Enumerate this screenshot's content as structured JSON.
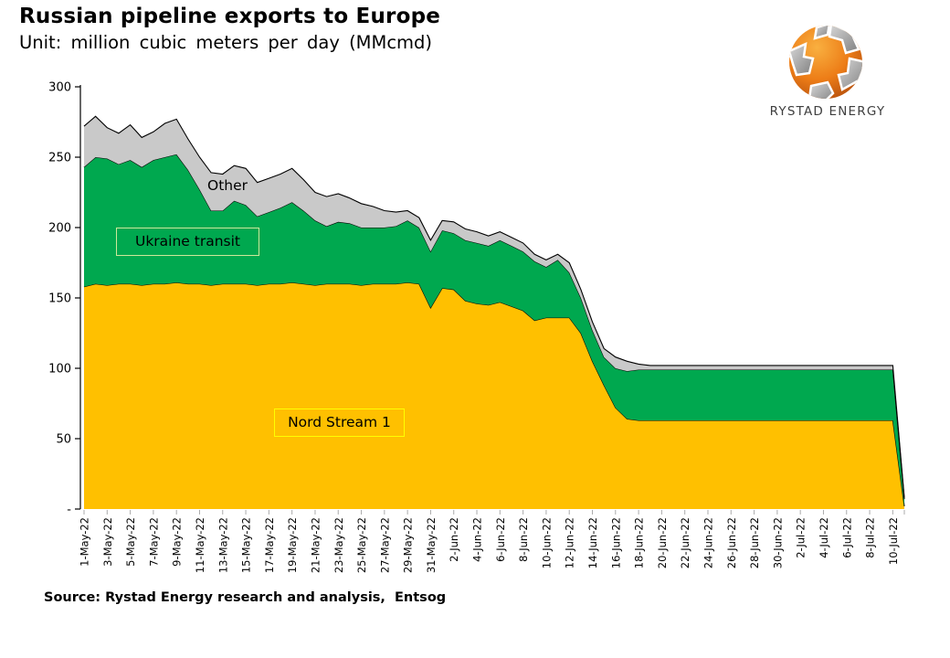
{
  "header": {
    "title": "Russian pipeline exports to Europe",
    "subtitle": "Unit: million cubic meters per day (MMcmd)"
  },
  "logo": {
    "text": "RYSTAD ENERGY"
  },
  "source": {
    "text": "Source: Rystad Energy research and analysis,  Entsog"
  },
  "chart_data": {
    "type": "area",
    "stacked": true,
    "title": "Russian pipeline exports to Europe",
    "ylabel": "MMcmd",
    "ylim": [
      0,
      300
    ],
    "grid": false,
    "legend_position": "inline-labels",
    "ytick_values": [
      0,
      50,
      100,
      150,
      200,
      250,
      300
    ],
    "ytick_labels": [
      "-",
      "50",
      "100",
      "150",
      "200",
      "250",
      "300"
    ],
    "x": [
      "1-May-22",
      "2-May-22",
      "3-May-22",
      "4-May-22",
      "5-May-22",
      "6-May-22",
      "7-May-22",
      "8-May-22",
      "9-May-22",
      "10-May-22",
      "11-May-22",
      "12-May-22",
      "13-May-22",
      "14-May-22",
      "15-May-22",
      "16-May-22",
      "17-May-22",
      "18-May-22",
      "19-May-22",
      "20-May-22",
      "21-May-22",
      "22-May-22",
      "23-May-22",
      "24-May-22",
      "25-May-22",
      "26-May-22",
      "27-May-22",
      "28-May-22",
      "29-May-22",
      "30-May-22",
      "31-May-22",
      "1-Jun-22",
      "2-Jun-22",
      "3-Jun-22",
      "4-Jun-22",
      "5-Jun-22",
      "6-Jun-22",
      "7-Jun-22",
      "8-Jun-22",
      "9-Jun-22",
      "10-Jun-22",
      "11-Jun-22",
      "12-Jun-22",
      "13-Jun-22",
      "14-Jun-22",
      "15-Jun-22",
      "16-Jun-22",
      "17-Jun-22",
      "18-Jun-22",
      "19-Jun-22",
      "20-Jun-22",
      "21-Jun-22",
      "22-Jun-22",
      "23-Jun-22",
      "24-Jun-22",
      "25-Jun-22",
      "26-Jun-22",
      "27-Jun-22",
      "28-Jun-22",
      "29-Jun-22",
      "30-Jun-22",
      "1-Jul-22",
      "2-Jul-22",
      "3-Jul-22",
      "4-Jul-22",
      "5-Jul-22",
      "6-Jul-22",
      "7-Jul-22",
      "8-Jul-22",
      "9-Jul-22",
      "10-Jul-22",
      "11-Jul-22"
    ],
    "x_tick_labels": [
      "1-May-22",
      "3-May-22",
      "5-May-22",
      "7-May-22",
      "9-May-22",
      "11-May-22",
      "13-May-22",
      "15-May-22",
      "17-May-22",
      "19-May-22",
      "21-May-22",
      "23-May-22",
      "25-May-22",
      "27-May-22",
      "29-May-22",
      "31-May-22",
      "2-Jun-22",
      "4-Jun-22",
      "6-Jun-22",
      "8-Jun-22",
      "10-Jun-22",
      "12-Jun-22",
      "14-Jun-22",
      "16-Jun-22",
      "18-Jun-22",
      "20-Jun-22",
      "22-Jun-22",
      "24-Jun-22",
      "26-Jun-22",
      "28-Jun-22",
      "30-Jun-22",
      "2-Jul-22",
      "4-Jul-22",
      "6-Jul-22",
      "8-Jul-22",
      "10-Jul-22"
    ],
    "x_tick_every": 2,
    "series": [
      {
        "name": "Nord Stream 1",
        "color": "#FFC000",
        "label_box_border": "#FFFF00",
        "values": [
          158,
          160,
          159,
          160,
          160,
          159,
          160,
          160,
          161,
          160,
          160,
          159,
          160,
          160,
          160,
          159,
          160,
          160,
          161,
          160,
          159,
          160,
          160,
          160,
          159,
          160,
          160,
          160,
          161,
          160,
          143,
          157,
          156,
          148,
          146,
          145,
          147,
          144,
          141,
          134,
          136,
          136,
          136,
          125,
          105,
          88,
          72,
          64,
          63,
          63,
          63,
          63,
          63,
          63,
          63,
          63,
          63,
          63,
          63,
          63,
          63,
          63,
          63,
          63,
          63,
          63,
          63,
          63,
          63,
          63,
          63,
          2
        ]
      },
      {
        "name": "Ukraine transit",
        "color": "#00A84F",
        "label_box_border": "#CDE89B",
        "values": [
          85,
          90,
          90,
          85,
          88,
          84,
          88,
          90,
          91,
          81,
          67,
          53,
          52,
          59,
          56,
          49,
          51,
          54,
          57,
          52,
          46,
          41,
          44,
          43,
          41,
          40,
          40,
          41,
          44,
          40,
          40,
          41,
          40,
          43,
          43,
          42,
          44,
          43,
          42,
          42,
          36,
          41,
          32,
          25,
          22,
          20,
          28,
          34,
          36,
          36,
          36,
          36,
          36,
          36,
          36,
          36,
          36,
          36,
          36,
          36,
          36,
          36,
          36,
          36,
          36,
          36,
          36,
          36,
          36,
          36,
          36,
          5
        ]
      },
      {
        "name": "Other",
        "color": "#C9C9C9",
        "label_box_border": null,
        "values": [
          29,
          29,
          22,
          22,
          25,
          21,
          20,
          24,
          25,
          22,
          23,
          27,
          26,
          25,
          26,
          24,
          24,
          24,
          24,
          22,
          20,
          21,
          20,
          18,
          17,
          15,
          12,
          10,
          7,
          7,
          8,
          7,
          8,
          8,
          8,
          7,
          6,
          6,
          6,
          5,
          5,
          4,
          7,
          6,
          6,
          6,
          8,
          7,
          4,
          3,
          3,
          3,
          3,
          3,
          3,
          3,
          3,
          3,
          3,
          3,
          3,
          3,
          3,
          3,
          3,
          3,
          3,
          3,
          3,
          3,
          3,
          1
        ]
      }
    ],
    "colors": {
      "boundary": "#000000",
      "axis": "#000000",
      "x_tick": "#ABABAB"
    }
  }
}
